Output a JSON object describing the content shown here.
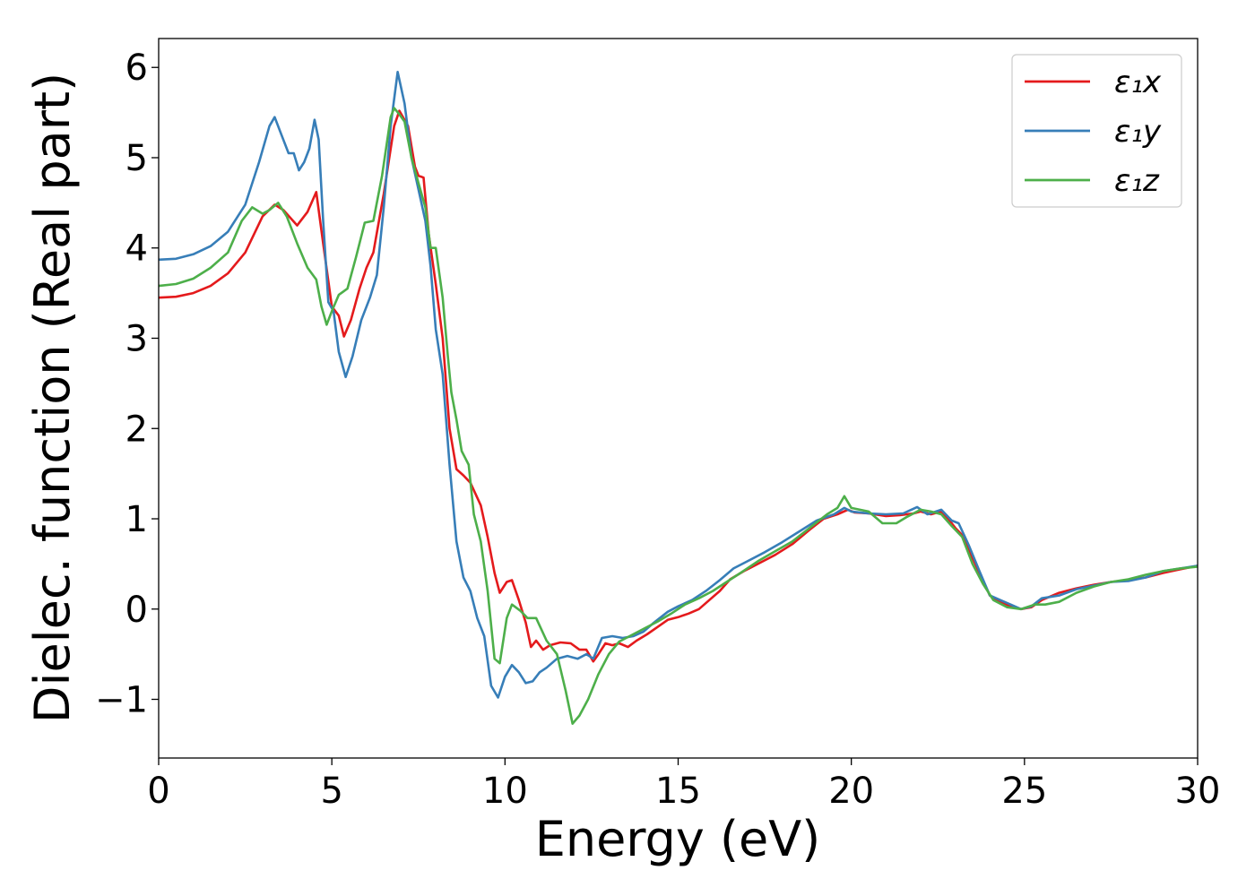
{
  "chart_data": {
    "type": "line",
    "xlabel": "Energy (eV)",
    "ylabel": "Dielec. function (Real part)",
    "xlim": [
      0,
      30
    ],
    "ylim": [
      -1.65,
      6.32
    ],
    "xticks": [
      0,
      5,
      10,
      15,
      20,
      25,
      30
    ],
    "xtick_labels": [
      "0",
      "5",
      "10",
      "15",
      "20",
      "25",
      "30"
    ],
    "yticks": [
      -1,
      0,
      1,
      2,
      3,
      4,
      5,
      6
    ],
    "ytick_labels": [
      "−1",
      "0",
      "1",
      "2",
      "3",
      "4",
      "5",
      "6"
    ],
    "grid": false,
    "legend_position": "top-right",
    "series": [
      {
        "name": "ε₁x",
        "color": "#e41a1c",
        "points": [
          [
            0,
            3.45
          ],
          [
            0.5,
            3.46
          ],
          [
            1.0,
            3.5
          ],
          [
            1.5,
            3.58
          ],
          [
            2.0,
            3.72
          ],
          [
            2.5,
            3.95
          ],
          [
            3.0,
            4.35
          ],
          [
            3.35,
            4.48
          ],
          [
            3.6,
            4.42
          ],
          [
            4.0,
            4.25
          ],
          [
            4.3,
            4.4
          ],
          [
            4.55,
            4.62
          ],
          [
            4.75,
            4.05
          ],
          [
            5.0,
            3.35
          ],
          [
            5.2,
            3.25
          ],
          [
            5.35,
            3.02
          ],
          [
            5.55,
            3.2
          ],
          [
            5.8,
            3.55
          ],
          [
            6.0,
            3.78
          ],
          [
            6.2,
            3.95
          ],
          [
            6.5,
            4.6
          ],
          [
            6.8,
            5.35
          ],
          [
            6.95,
            5.52
          ],
          [
            7.2,
            5.35
          ],
          [
            7.4,
            4.9
          ],
          [
            7.5,
            4.8
          ],
          [
            7.65,
            4.78
          ],
          [
            7.8,
            4.15
          ],
          [
            8.0,
            3.6
          ],
          [
            8.2,
            3.0
          ],
          [
            8.4,
            2.0
          ],
          [
            8.6,
            1.55
          ],
          [
            8.8,
            1.48
          ],
          [
            9.0,
            1.4
          ],
          [
            9.3,
            1.15
          ],
          [
            9.5,
            0.8
          ],
          [
            9.7,
            0.4
          ],
          [
            9.85,
            0.18
          ],
          [
            10.05,
            0.3
          ],
          [
            10.2,
            0.32
          ],
          [
            10.4,
            0.1
          ],
          [
            10.6,
            -0.15
          ],
          [
            10.75,
            -0.42
          ],
          [
            10.9,
            -0.35
          ],
          [
            11.1,
            -0.45
          ],
          [
            11.3,
            -0.4
          ],
          [
            11.6,
            -0.37
          ],
          [
            11.9,
            -0.38
          ],
          [
            12.15,
            -0.45
          ],
          [
            12.35,
            -0.45
          ],
          [
            12.55,
            -0.58
          ],
          [
            12.7,
            -0.5
          ],
          [
            12.9,
            -0.38
          ],
          [
            13.1,
            -0.4
          ],
          [
            13.3,
            -0.38
          ],
          [
            13.55,
            -0.42
          ],
          [
            13.8,
            -0.35
          ],
          [
            14.1,
            -0.28
          ],
          [
            14.4,
            -0.2
          ],
          [
            14.7,
            -0.12
          ],
          [
            15.0,
            -0.09
          ],
          [
            15.3,
            -0.05
          ],
          [
            15.6,
            0.0
          ],
          [
            15.9,
            0.1
          ],
          [
            16.2,
            0.2
          ],
          [
            16.5,
            0.33
          ],
          [
            16.9,
            0.42
          ],
          [
            17.3,
            0.5
          ],
          [
            17.8,
            0.6
          ],
          [
            18.3,
            0.72
          ],
          [
            18.8,
            0.88
          ],
          [
            19.2,
            1.0
          ],
          [
            19.6,
            1.05
          ],
          [
            19.9,
            1.1
          ],
          [
            20.1,
            1.07
          ],
          [
            20.5,
            1.06
          ],
          [
            21.0,
            1.03
          ],
          [
            21.4,
            1.04
          ],
          [
            21.8,
            1.06
          ],
          [
            22.0,
            1.08
          ],
          [
            22.3,
            1.05
          ],
          [
            22.6,
            1.08
          ],
          [
            22.8,
            1.0
          ],
          [
            23.0,
            0.9
          ],
          [
            23.2,
            0.82
          ],
          [
            23.4,
            0.65
          ],
          [
            23.7,
            0.4
          ],
          [
            24.0,
            0.15
          ],
          [
            24.3,
            0.08
          ],
          [
            24.6,
            0.03
          ],
          [
            24.9,
            0.0
          ],
          [
            25.2,
            0.02
          ],
          [
            25.5,
            0.1
          ],
          [
            26.0,
            0.18
          ],
          [
            26.5,
            0.23
          ],
          [
            27.0,
            0.27
          ],
          [
            27.5,
            0.3
          ],
          [
            28.0,
            0.32
          ],
          [
            28.5,
            0.35
          ],
          [
            29.0,
            0.4
          ],
          [
            29.5,
            0.44
          ],
          [
            30.0,
            0.48
          ]
        ]
      },
      {
        "name": "ε₁y",
        "color": "#377eb8",
        "points": [
          [
            0,
            3.87
          ],
          [
            0.5,
            3.88
          ],
          [
            1.0,
            3.93
          ],
          [
            1.5,
            4.02
          ],
          [
            2.0,
            4.18
          ],
          [
            2.5,
            4.48
          ],
          [
            2.9,
            4.95
          ],
          [
            3.2,
            5.35
          ],
          [
            3.35,
            5.45
          ],
          [
            3.55,
            5.25
          ],
          [
            3.75,
            5.05
          ],
          [
            3.9,
            5.05
          ],
          [
            4.05,
            4.86
          ],
          [
            4.2,
            4.95
          ],
          [
            4.35,
            5.1
          ],
          [
            4.5,
            5.42
          ],
          [
            4.62,
            5.2
          ],
          [
            4.75,
            4.3
          ],
          [
            4.9,
            3.4
          ],
          [
            5.05,
            3.3
          ],
          [
            5.2,
            2.85
          ],
          [
            5.4,
            2.57
          ],
          [
            5.6,
            2.8
          ],
          [
            5.85,
            3.2
          ],
          [
            6.1,
            3.45
          ],
          [
            6.3,
            3.7
          ],
          [
            6.5,
            4.45
          ],
          [
            6.7,
            5.35
          ],
          [
            6.9,
            5.95
          ],
          [
            7.1,
            5.6
          ],
          [
            7.3,
            5.0
          ],
          [
            7.5,
            4.65
          ],
          [
            7.7,
            4.3
          ],
          [
            7.85,
            3.8
          ],
          [
            8.0,
            3.1
          ],
          [
            8.2,
            2.6
          ],
          [
            8.4,
            1.6
          ],
          [
            8.6,
            0.75
          ],
          [
            8.8,
            0.35
          ],
          [
            9.0,
            0.2
          ],
          [
            9.2,
            -0.1
          ],
          [
            9.4,
            -0.3
          ],
          [
            9.6,
            -0.85
          ],
          [
            9.8,
            -0.98
          ],
          [
            10.0,
            -0.75
          ],
          [
            10.2,
            -0.62
          ],
          [
            10.4,
            -0.7
          ],
          [
            10.6,
            -0.82
          ],
          [
            10.8,
            -0.8
          ],
          [
            11.0,
            -0.7
          ],
          [
            11.2,
            -0.65
          ],
          [
            11.5,
            -0.55
          ],
          [
            11.8,
            -0.52
          ],
          [
            12.1,
            -0.55
          ],
          [
            12.35,
            -0.5
          ],
          [
            12.55,
            -0.55
          ],
          [
            12.8,
            -0.32
          ],
          [
            13.1,
            -0.3
          ],
          [
            13.4,
            -0.32
          ],
          [
            13.7,
            -0.3
          ],
          [
            14.0,
            -0.25
          ],
          [
            14.3,
            -0.15
          ],
          [
            14.7,
            -0.03
          ],
          [
            15.0,
            0.03
          ],
          [
            15.4,
            0.1
          ],
          [
            15.8,
            0.2
          ],
          [
            16.2,
            0.32
          ],
          [
            16.6,
            0.45
          ],
          [
            17.0,
            0.53
          ],
          [
            17.5,
            0.63
          ],
          [
            18.0,
            0.74
          ],
          [
            18.5,
            0.86
          ],
          [
            19.0,
            0.98
          ],
          [
            19.5,
            1.05
          ],
          [
            19.8,
            1.12
          ],
          [
            20.0,
            1.08
          ],
          [
            20.5,
            1.06
          ],
          [
            21.0,
            1.05
          ],
          [
            21.5,
            1.06
          ],
          [
            21.9,
            1.13
          ],
          [
            22.2,
            1.05
          ],
          [
            22.6,
            1.1
          ],
          [
            22.9,
            0.98
          ],
          [
            23.1,
            0.95
          ],
          [
            23.4,
            0.7
          ],
          [
            23.7,
            0.42
          ],
          [
            24.0,
            0.15
          ],
          [
            24.3,
            0.1
          ],
          [
            24.6,
            0.05
          ],
          [
            24.9,
            0.0
          ],
          [
            25.2,
            0.03
          ],
          [
            25.5,
            0.12
          ],
          [
            26.0,
            0.15
          ],
          [
            26.5,
            0.22
          ],
          [
            27.0,
            0.26
          ],
          [
            27.5,
            0.3
          ],
          [
            28.0,
            0.31
          ],
          [
            28.5,
            0.35
          ],
          [
            29.0,
            0.42
          ],
          [
            29.5,
            0.45
          ],
          [
            30.0,
            0.48
          ]
        ]
      },
      {
        "name": "ε₁z",
        "color": "#4daf4a",
        "points": [
          [
            0,
            3.58
          ],
          [
            0.5,
            3.6
          ],
          [
            1.0,
            3.66
          ],
          [
            1.5,
            3.78
          ],
          [
            2.0,
            3.95
          ],
          [
            2.4,
            4.3
          ],
          [
            2.7,
            4.45
          ],
          [
            3.0,
            4.38
          ],
          [
            3.2,
            4.42
          ],
          [
            3.45,
            4.5
          ],
          [
            3.7,
            4.35
          ],
          [
            4.0,
            4.05
          ],
          [
            4.3,
            3.78
          ],
          [
            4.55,
            3.65
          ],
          [
            4.7,
            3.35
          ],
          [
            4.85,
            3.15
          ],
          [
            5.0,
            3.3
          ],
          [
            5.2,
            3.48
          ],
          [
            5.45,
            3.55
          ],
          [
            5.7,
            3.9
          ],
          [
            5.95,
            4.28
          ],
          [
            6.2,
            4.3
          ],
          [
            6.45,
            4.8
          ],
          [
            6.7,
            5.45
          ],
          [
            6.8,
            5.55
          ],
          [
            6.95,
            5.48
          ],
          [
            7.1,
            5.4
          ],
          [
            7.3,
            5.0
          ],
          [
            7.5,
            4.72
          ],
          [
            7.7,
            4.45
          ],
          [
            7.85,
            4.0
          ],
          [
            8.0,
            4.0
          ],
          [
            8.2,
            3.45
          ],
          [
            8.35,
            2.8
          ],
          [
            8.45,
            2.4
          ],
          [
            8.6,
            2.1
          ],
          [
            8.75,
            1.75
          ],
          [
            8.95,
            1.6
          ],
          [
            9.1,
            1.05
          ],
          [
            9.3,
            0.75
          ],
          [
            9.5,
            0.2
          ],
          [
            9.7,
            -0.55
          ],
          [
            9.85,
            -0.6
          ],
          [
            10.05,
            -0.1
          ],
          [
            10.2,
            0.05
          ],
          [
            10.45,
            -0.02
          ],
          [
            10.65,
            -0.1
          ],
          [
            10.9,
            -0.1
          ],
          [
            11.2,
            -0.35
          ],
          [
            11.5,
            -0.5
          ],
          [
            11.75,
            -0.9
          ],
          [
            11.95,
            -1.27
          ],
          [
            12.15,
            -1.18
          ],
          [
            12.4,
            -1.0
          ],
          [
            12.7,
            -0.72
          ],
          [
            13.0,
            -0.5
          ],
          [
            13.3,
            -0.36
          ],
          [
            13.6,
            -0.3
          ],
          [
            14.0,
            -0.22
          ],
          [
            14.4,
            -0.14
          ],
          [
            14.8,
            -0.05
          ],
          [
            15.2,
            0.05
          ],
          [
            15.6,
            0.12
          ],
          [
            16.0,
            0.2
          ],
          [
            16.4,
            0.3
          ],
          [
            16.8,
            0.4
          ],
          [
            17.3,
            0.53
          ],
          [
            17.8,
            0.64
          ],
          [
            18.3,
            0.75
          ],
          [
            18.8,
            0.9
          ],
          [
            19.3,
            1.05
          ],
          [
            19.6,
            1.12
          ],
          [
            19.8,
            1.25
          ],
          [
            20.0,
            1.12
          ],
          [
            20.5,
            1.08
          ],
          [
            20.9,
            0.95
          ],
          [
            21.3,
            0.95
          ],
          [
            21.6,
            1.02
          ],
          [
            22.0,
            1.1
          ],
          [
            22.3,
            1.08
          ],
          [
            22.6,
            1.05
          ],
          [
            22.9,
            0.92
          ],
          [
            23.2,
            0.8
          ],
          [
            23.5,
            0.5
          ],
          [
            23.8,
            0.28
          ],
          [
            24.1,
            0.1
          ],
          [
            24.5,
            0.02
          ],
          [
            24.9,
            0.0
          ],
          [
            25.3,
            0.05
          ],
          [
            25.6,
            0.05
          ],
          [
            26.0,
            0.08
          ],
          [
            26.5,
            0.18
          ],
          [
            27.0,
            0.25
          ],
          [
            27.5,
            0.3
          ],
          [
            28.0,
            0.33
          ],
          [
            28.5,
            0.38
          ],
          [
            29.0,
            0.42
          ],
          [
            29.5,
            0.45
          ],
          [
            30.0,
            0.47
          ]
        ]
      }
    ]
  }
}
